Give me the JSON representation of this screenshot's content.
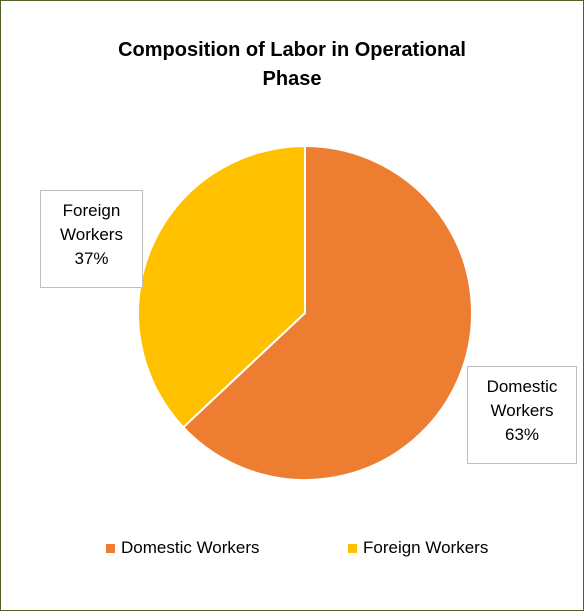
{
  "chart_data": {
    "type": "pie",
    "title": "Composition of Labor in Operational Phase",
    "categories": [
      "Domestic Workers",
      "Foreign Workers"
    ],
    "values": [
      63,
      37
    ],
    "value_labels": [
      "63%",
      "37%"
    ],
    "colors": [
      "#ed7d31",
      "#ffc000"
    ],
    "legend": "bottom"
  }
}
